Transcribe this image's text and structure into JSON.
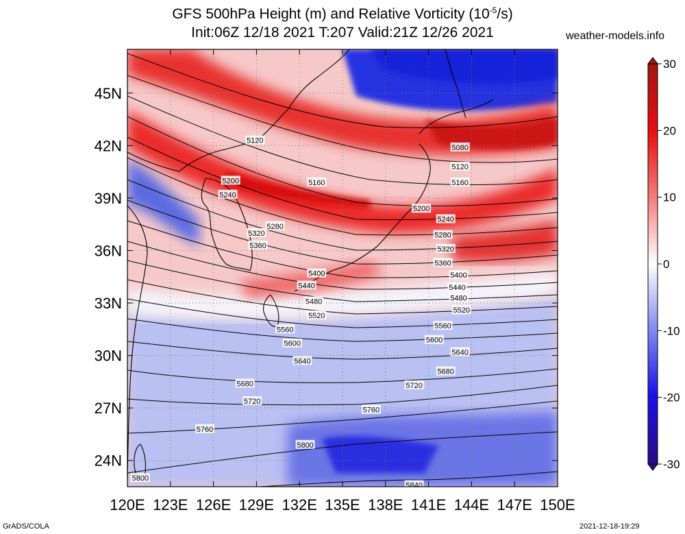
{
  "header": {
    "title_line1": "GFS 500hPa Height (m) and Relative Vorticity (10",
    "title_line1_sup": "-5",
    "title_line1_end": "/s)",
    "title_line2": "Init:06Z 12/18 2021 T:207 Valid:21Z 12/26 2021",
    "site": "weather-models.info"
  },
  "map": {
    "lat_labels": [
      "45N",
      "42N",
      "39N",
      "36N",
      "33N",
      "30N",
      "27N",
      "24N"
    ],
    "lon_labels": [
      "120E",
      "123E",
      "126E",
      "129E",
      "132E",
      "135E",
      "138E",
      "141E",
      "144E",
      "147E",
      "150E"
    ],
    "lat_range": [
      22.5,
      47.5
    ],
    "lon_range": [
      120,
      150
    ],
    "contour_labels": [
      {
        "text": "5080",
        "lon": 143.2,
        "lat": 41.9
      },
      {
        "text": "5120",
        "lon": 128.9,
        "lat": 42.3
      },
      {
        "text": "5120",
        "lon": 143.2,
        "lat": 40.8
      },
      {
        "text": "5160",
        "lon": 133.2,
        "lat": 39.9
      },
      {
        "text": "5160",
        "lon": 143.2,
        "lat": 39.9
      },
      {
        "text": "5200",
        "lon": 127.2,
        "lat": 40.0
      },
      {
        "text": "5200",
        "lon": 140.5,
        "lat": 38.4
      },
      {
        "text": "5240",
        "lon": 127.0,
        "lat": 39.2
      },
      {
        "text": "5240",
        "lon": 142.2,
        "lat": 37.8
      },
      {
        "text": "5280",
        "lon": 130.3,
        "lat": 37.4
      },
      {
        "text": "5280",
        "lon": 142.0,
        "lat": 36.9
      },
      {
        "text": "5320",
        "lon": 129.0,
        "lat": 37.0
      },
      {
        "text": "5320",
        "lon": 142.2,
        "lat": 36.1
      },
      {
        "text": "5360",
        "lon": 129.1,
        "lat": 36.3
      },
      {
        "text": "5360",
        "lon": 142.0,
        "lat": 35.3
      },
      {
        "text": "5400",
        "lon": 133.2,
        "lat": 34.7
      },
      {
        "text": "5400",
        "lon": 143.1,
        "lat": 34.6
      },
      {
        "text": "5440",
        "lon": 132.5,
        "lat": 34.0
      },
      {
        "text": "5440",
        "lon": 143.0,
        "lat": 33.9
      },
      {
        "text": "5480",
        "lon": 133.0,
        "lat": 33.1
      },
      {
        "text": "5480",
        "lon": 143.1,
        "lat": 33.3
      },
      {
        "text": "5520",
        "lon": 133.2,
        "lat": 32.3
      },
      {
        "text": "5520",
        "lon": 143.3,
        "lat": 32.6
      },
      {
        "text": "5560",
        "lon": 131.0,
        "lat": 31.5
      },
      {
        "text": "5560",
        "lon": 142.0,
        "lat": 31.7
      },
      {
        "text": "5600",
        "lon": 131.5,
        "lat": 30.7
      },
      {
        "text": "5600",
        "lon": 141.4,
        "lat": 30.9
      },
      {
        "text": "5640",
        "lon": 132.2,
        "lat": 29.7
      },
      {
        "text": "5640",
        "lon": 143.2,
        "lat": 30.2
      },
      {
        "text": "5680",
        "lon": 128.2,
        "lat": 28.4
      },
      {
        "text": "5680",
        "lon": 142.2,
        "lat": 29.1
      },
      {
        "text": "5720",
        "lon": 128.7,
        "lat": 27.4
      },
      {
        "text": "5720",
        "lon": 140.0,
        "lat": 28.3
      },
      {
        "text": "5760",
        "lon": 125.4,
        "lat": 25.8
      },
      {
        "text": "5760",
        "lon": 137.0,
        "lat": 26.9
      },
      {
        "text": "5800",
        "lon": 132.4,
        "lat": 24.9
      },
      {
        "text": "5800",
        "lon": 120.9,
        "lat": 23.0
      },
      {
        "text": "5840",
        "lon": 140.0,
        "lat": 22.6
      }
    ]
  },
  "colorbar": {
    "ticks": [
      "30",
      "20",
      "10",
      "0",
      "-10",
      "-20",
      "-30"
    ],
    "range": [
      -30,
      30
    ]
  },
  "footer": {
    "left": "GrADS/COLA",
    "right": "2021-12-18-19:29"
  }
}
